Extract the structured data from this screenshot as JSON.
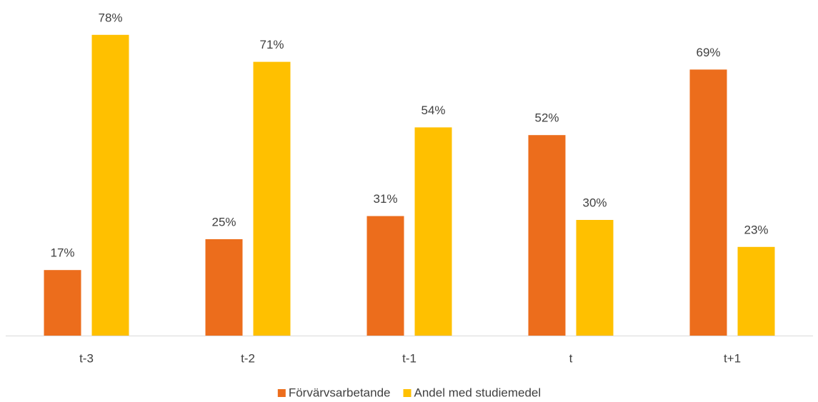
{
  "chart_data": {
    "type": "bar",
    "categories": [
      "t-3",
      "t-2",
      "t-1",
      "t",
      "t+1"
    ],
    "series": [
      {
        "name": "Förvärvsarbetande",
        "color": "#ec6d1c",
        "values": [
          17,
          25,
          31,
          52,
          69
        ],
        "value_labels": [
          "17%",
          "25%",
          "31%",
          "52%",
          "69%"
        ]
      },
      {
        "name": "Andel med studiemedel",
        "color": "#ffc000",
        "values": [
          78,
          71,
          54,
          30,
          23
        ],
        "value_labels": [
          "78%",
          "71%",
          "54%",
          "30%",
          "23%"
        ]
      }
    ],
    "ylim": [
      0,
      85
    ],
    "legend": "bottom"
  }
}
